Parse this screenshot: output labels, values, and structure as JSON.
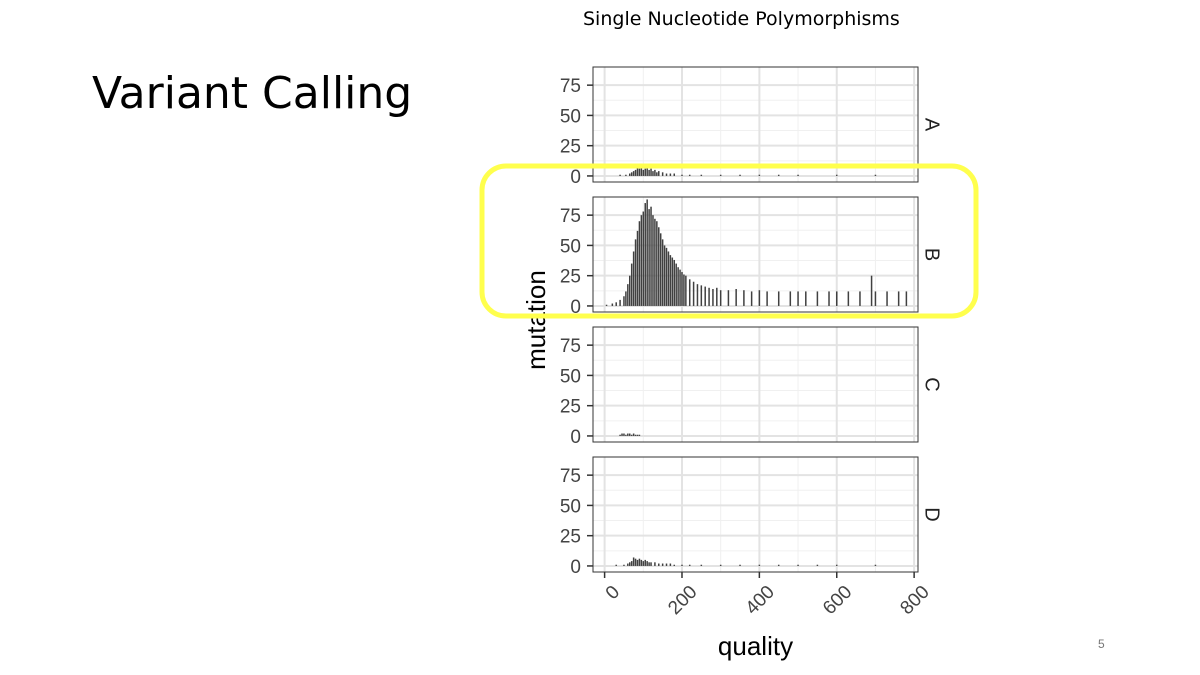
{
  "slide": {
    "title": "Variant Calling",
    "page_number": "5"
  },
  "highlight": {
    "color": "#ffff4d",
    "target_panel": "B"
  },
  "chart_data": {
    "type": "bar",
    "title": "Single Nucleotide Polymorphisms",
    "xlabel": "quality",
    "ylabel": "mutation",
    "xlim": [
      -30,
      810
    ],
    "ylim": [
      -5,
      90
    ],
    "x_ticks": [
      0,
      200,
      400,
      600,
      800
    ],
    "y_ticks": [
      0,
      25,
      50,
      75
    ],
    "bar_color": "#404040",
    "facet_strip_position": "right",
    "grid": true,
    "panels": [
      {
        "label": "A",
        "values": [
          [
            40,
            1
          ],
          [
            55,
            1
          ],
          [
            65,
            2
          ],
          [
            70,
            3
          ],
          [
            75,
            4
          ],
          [
            80,
            5
          ],
          [
            85,
            7
          ],
          [
            90,
            6
          ],
          [
            95,
            8
          ],
          [
            100,
            5
          ],
          [
            105,
            6
          ],
          [
            110,
            7
          ],
          [
            115,
            5
          ],
          [
            120,
            6
          ],
          [
            125,
            4
          ],
          [
            130,
            5
          ],
          [
            135,
            3
          ],
          [
            140,
            4
          ],
          [
            150,
            3
          ],
          [
            160,
            2
          ],
          [
            170,
            2
          ],
          [
            180,
            2
          ],
          [
            200,
            1
          ],
          [
            220,
            1
          ],
          [
            250,
            1
          ],
          [
            300,
            1
          ],
          [
            350,
            1
          ],
          [
            400,
            1
          ],
          [
            450,
            1
          ],
          [
            500,
            1
          ],
          [
            600,
            1
          ],
          [
            700,
            1
          ]
        ]
      },
      {
        "label": "B",
        "values": [
          [
            5,
            1
          ],
          [
            20,
            2
          ],
          [
            30,
            3
          ],
          [
            40,
            5
          ],
          [
            50,
            8
          ],
          [
            55,
            12
          ],
          [
            60,
            18
          ],
          [
            65,
            25
          ],
          [
            70,
            35
          ],
          [
            75,
            45
          ],
          [
            80,
            55
          ],
          [
            85,
            62
          ],
          [
            90,
            70
          ],
          [
            95,
            75
          ],
          [
            100,
            78
          ],
          [
            105,
            85
          ],
          [
            110,
            88
          ],
          [
            115,
            80
          ],
          [
            120,
            82
          ],
          [
            125,
            75
          ],
          [
            130,
            72
          ],
          [
            135,
            70
          ],
          [
            140,
            65
          ],
          [
            145,
            60
          ],
          [
            150,
            55
          ],
          [
            155,
            50
          ],
          [
            160,
            48
          ],
          [
            165,
            45
          ],
          [
            170,
            42
          ],
          [
            175,
            40
          ],
          [
            180,
            38
          ],
          [
            185,
            35
          ],
          [
            190,
            32
          ],
          [
            195,
            30
          ],
          [
            200,
            28
          ],
          [
            205,
            26
          ],
          [
            210,
            25
          ],
          [
            220,
            22
          ],
          [
            230,
            20
          ],
          [
            240,
            18
          ],
          [
            250,
            17
          ],
          [
            260,
            16
          ],
          [
            270,
            15
          ],
          [
            280,
            14
          ],
          [
            290,
            15
          ],
          [
            300,
            13
          ],
          [
            320,
            13
          ],
          [
            340,
            14
          ],
          [
            360,
            13
          ],
          [
            380,
            12
          ],
          [
            400,
            13
          ],
          [
            420,
            12
          ],
          [
            450,
            12
          ],
          [
            480,
            12
          ],
          [
            500,
            12
          ],
          [
            520,
            12
          ],
          [
            550,
            12
          ],
          [
            580,
            12
          ],
          [
            600,
            12
          ],
          [
            630,
            12
          ],
          [
            660,
            12
          ],
          [
            690,
            25
          ],
          [
            700,
            12
          ],
          [
            730,
            12
          ],
          [
            760,
            12
          ],
          [
            780,
            12
          ]
        ]
      },
      {
        "label": "C",
        "values": [
          [
            40,
            1
          ],
          [
            45,
            2
          ],
          [
            50,
            2
          ],
          [
            55,
            1
          ],
          [
            60,
            2
          ],
          [
            65,
            2
          ],
          [
            70,
            1
          ],
          [
            75,
            2
          ],
          [
            80,
            1
          ],
          [
            85,
            1
          ],
          [
            90,
            1
          ]
        ]
      },
      {
        "label": "D",
        "values": [
          [
            30,
            1
          ],
          [
            50,
            1
          ],
          [
            60,
            2
          ],
          [
            65,
            3
          ],
          [
            70,
            4
          ],
          [
            75,
            7
          ],
          [
            80,
            6
          ],
          [
            85,
            5
          ],
          [
            90,
            6
          ],
          [
            95,
            5
          ],
          [
            100,
            4
          ],
          [
            105,
            5
          ],
          [
            110,
            4
          ],
          [
            115,
            3
          ],
          [
            120,
            3
          ],
          [
            130,
            3
          ],
          [
            140,
            2
          ],
          [
            150,
            2
          ],
          [
            160,
            2
          ],
          [
            170,
            2
          ],
          [
            180,
            1
          ],
          [
            200,
            1
          ],
          [
            220,
            1
          ],
          [
            250,
            1
          ],
          [
            300,
            1
          ],
          [
            350,
            1
          ],
          [
            400,
            1
          ],
          [
            450,
            1
          ],
          [
            500,
            1
          ],
          [
            550,
            1
          ],
          [
            600,
            1
          ],
          [
            700,
            1
          ]
        ]
      }
    ]
  }
}
